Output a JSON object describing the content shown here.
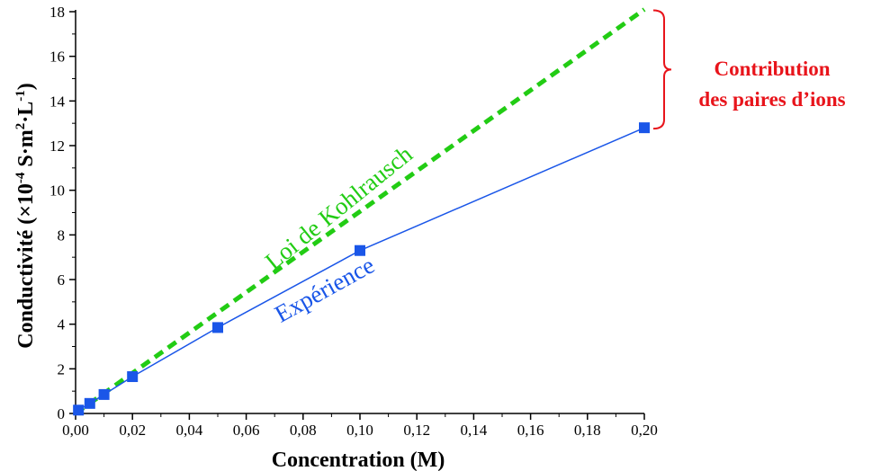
{
  "colors": {
    "experiment": "#1a56e8",
    "kohlrausch": "#22cc14",
    "annotation": "#e8141b",
    "axis": "#000000"
  },
  "chart_data": {
    "type": "line",
    "title": "",
    "xlabel": "Concentration (M)",
    "ylabel_main": "Conductivité (×10",
    "ylabel_exp1": "-4",
    "ylabel_mid": " S·m",
    "ylabel_exp2": "2",
    "ylabel_mid2": "·L",
    "ylabel_exp3": "-1",
    "ylabel_end": ")",
    "xlim": [
      0,
      0.2
    ],
    "ylim": [
      0,
      18
    ],
    "xticks": [
      0,
      0.02,
      0.04,
      0.06,
      0.08,
      0.1,
      0.12,
      0.14,
      0.16,
      0.18,
      0.2
    ],
    "xtick_labels": [
      "0,00",
      "0,02",
      "0,04",
      "0,06",
      "0,08",
      "0,10",
      "0,12",
      "0,14",
      "0,16",
      "0,18",
      "0,20"
    ],
    "yticks": [
      0,
      2,
      4,
      6,
      8,
      10,
      12,
      14,
      16,
      18
    ],
    "ytick_labels": [
      "0",
      "2",
      "4",
      "6",
      "8",
      "10",
      "12",
      "14",
      "16",
      "18"
    ],
    "series": [
      {
        "name": "Expérience",
        "style": "solid-with-square-markers",
        "x": [
          0.001,
          0.005,
          0.01,
          0.02,
          0.05,
          0.1,
          0.2
        ],
        "y": [
          0.15,
          0.45,
          0.85,
          1.65,
          3.85,
          7.3,
          12.8
        ]
      },
      {
        "name": "Loi de Kohlrausch",
        "style": "dashed",
        "x": [
          0,
          0.2
        ],
        "y": [
          0,
          18.1
        ]
      }
    ],
    "annotation": {
      "line1": "Contribution",
      "line2": "des paires d’ions"
    }
  }
}
